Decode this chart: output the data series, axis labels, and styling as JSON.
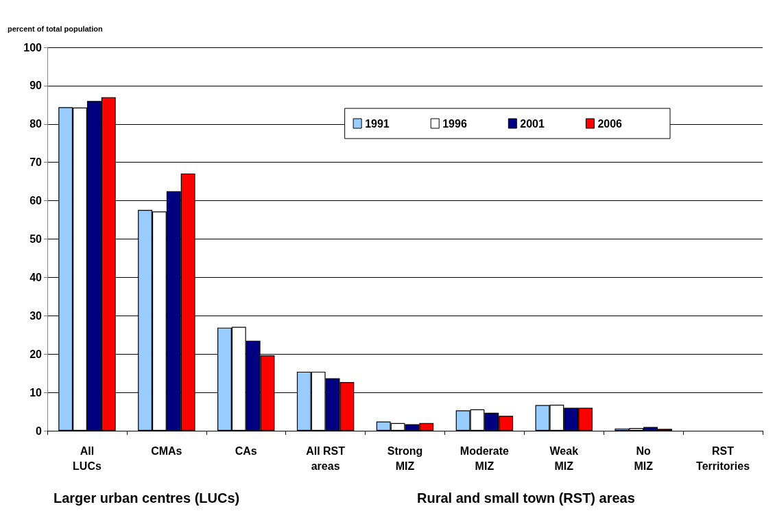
{
  "chart_data": {
    "type": "bar",
    "ylabel": "percent of total population",
    "categories": [
      "All\nLUCs",
      "CMAs",
      "CAs",
      "All RST\nareas",
      "Strong\nMIZ",
      "Moderate\nMIZ",
      "Weak\nMIZ",
      "No\nMIZ",
      "RST\nTerritories"
    ],
    "series": [
      {
        "name": "1991",
        "color": "#99ccff",
        "values": [
          84.4,
          57.6,
          26.9,
          15.4,
          2.4,
          5.3,
          6.7,
          0.6,
          null
        ]
      },
      {
        "name": "1996",
        "color": "#ffffff",
        "values": [
          84.3,
          57.2,
          27.1,
          15.4,
          2.0,
          5.6,
          6.8,
          0.7,
          null
        ]
      },
      {
        "name": "2001",
        "color": "#000080",
        "values": [
          86.0,
          62.5,
          23.5,
          13.7,
          1.7,
          4.7,
          6.0,
          1.0,
          null
        ]
      },
      {
        "name": "2006",
        "color": "#ff0000",
        "values": [
          87.0,
          67.1,
          19.7,
          12.7,
          2.0,
          3.9,
          6.0,
          0.5,
          null
        ]
      }
    ],
    "ylim": [
      0,
      100
    ],
    "yticks": [
      0,
      10,
      20,
      30,
      40,
      50,
      60,
      70,
      80,
      90,
      100
    ],
    "grid": "y",
    "legend": "top right",
    "annotations": [
      "Larger urban centres (LUCs)",
      "Rural and small town (RST) areas"
    ]
  }
}
